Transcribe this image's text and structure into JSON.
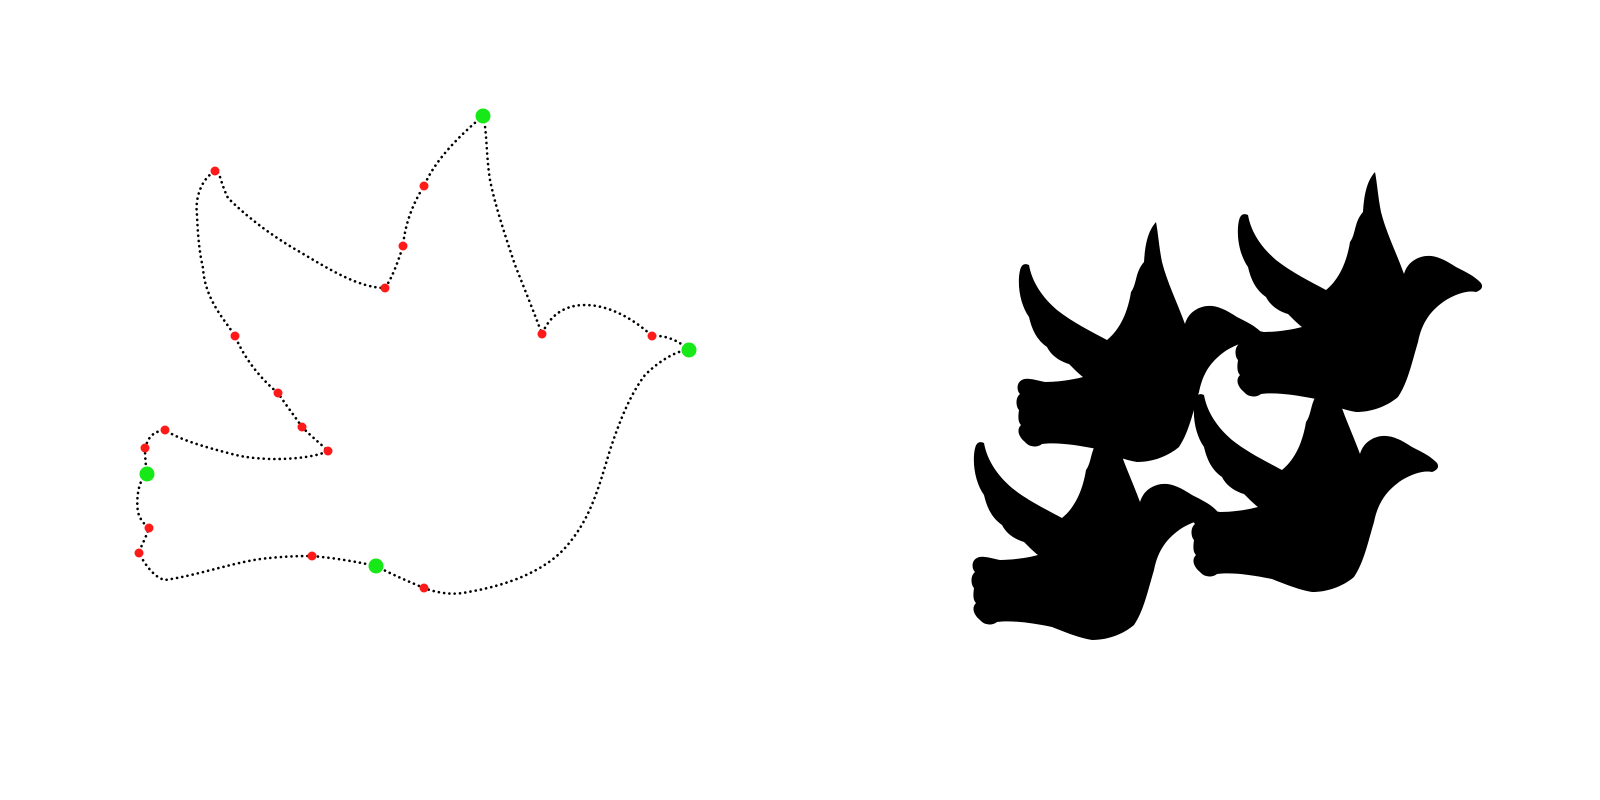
{
  "colors": {
    "background": "#ffffff",
    "outline_dot": "#000000",
    "vertex": "#ff1a1a",
    "key_vertex": "#17e817",
    "silhouette": "#000000"
  },
  "figures": {
    "left": {
      "kind": "dove outline",
      "vertex_count": 20,
      "key_vertex_count": 4
    },
    "right": {
      "kind": "dove tiling",
      "tile_count": 4
    }
  }
}
